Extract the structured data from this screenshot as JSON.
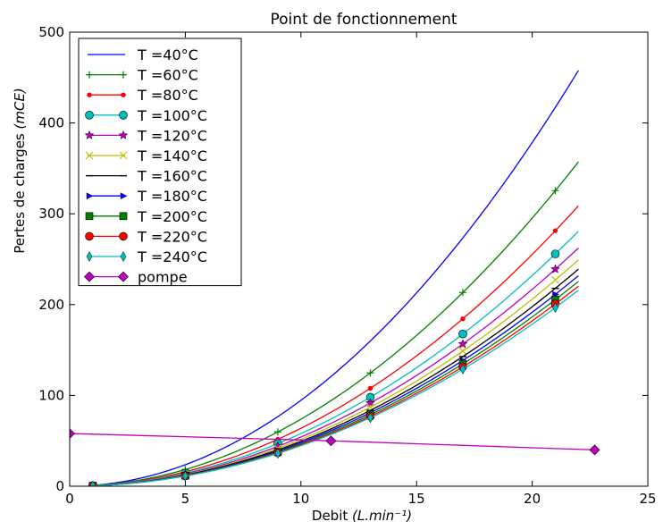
{
  "chart_data": {
    "type": "line",
    "title": "Point de fonctionnement",
    "xlabel": "Debit",
    "xlabel_unit": "(L.min⁻¹)",
    "ylabel": "Pertes de charges",
    "ylabel_unit": "(mCE)",
    "xlim": [
      0,
      25
    ],
    "ylim": [
      0,
      500
    ],
    "xticks": [
      0,
      5,
      10,
      15,
      20,
      25
    ],
    "yticks": [
      0,
      100,
      200,
      300,
      400,
      500
    ],
    "grid": false,
    "legend_position": "top-left",
    "curve_x_range": [
      1,
      22
    ],
    "marker_x": [
      1,
      5,
      9,
      13,
      17,
      21
    ],
    "series": [
      {
        "name": "T =40°C",
        "coef": 0.946,
        "color": "#0000ff",
        "marker": "none"
      },
      {
        "name": "T =60°C",
        "coef": 0.738,
        "color": "#008000",
        "marker": "plus"
      },
      {
        "name": "T =80°C",
        "coef": 0.638,
        "color": "#ff0000",
        "marker": "point"
      },
      {
        "name": "T =100°C",
        "coef": 0.58,
        "color": "#00bfbf",
        "marker": "circle"
      },
      {
        "name": "T =120°C",
        "coef": 0.542,
        "color": "#bf00bf",
        "marker": "star"
      },
      {
        "name": "T =140°C",
        "coef": 0.515,
        "color": "#bfbf00",
        "marker": "x"
      },
      {
        "name": "T =160°C",
        "coef": 0.494,
        "color": "#000000",
        "marker": "hline"
      },
      {
        "name": "T =180°C",
        "coef": 0.479,
        "color": "#0000ff",
        "marker": "triangle-right"
      },
      {
        "name": "T =200°C",
        "coef": 0.466,
        "color": "#008000",
        "marker": "square"
      },
      {
        "name": "T =220°C",
        "coef": 0.455,
        "color": "#ff0000",
        "marker": "circle"
      },
      {
        "name": "T =240°C",
        "coef": 0.446,
        "color": "#00bfbf",
        "marker": "thin-diamond"
      },
      {
        "name": "pompe",
        "color": "#bf00bf",
        "marker": "diamond",
        "x": [
          0,
          11.3,
          22.7
        ],
        "y": [
          58,
          50,
          40
        ]
      }
    ]
  }
}
